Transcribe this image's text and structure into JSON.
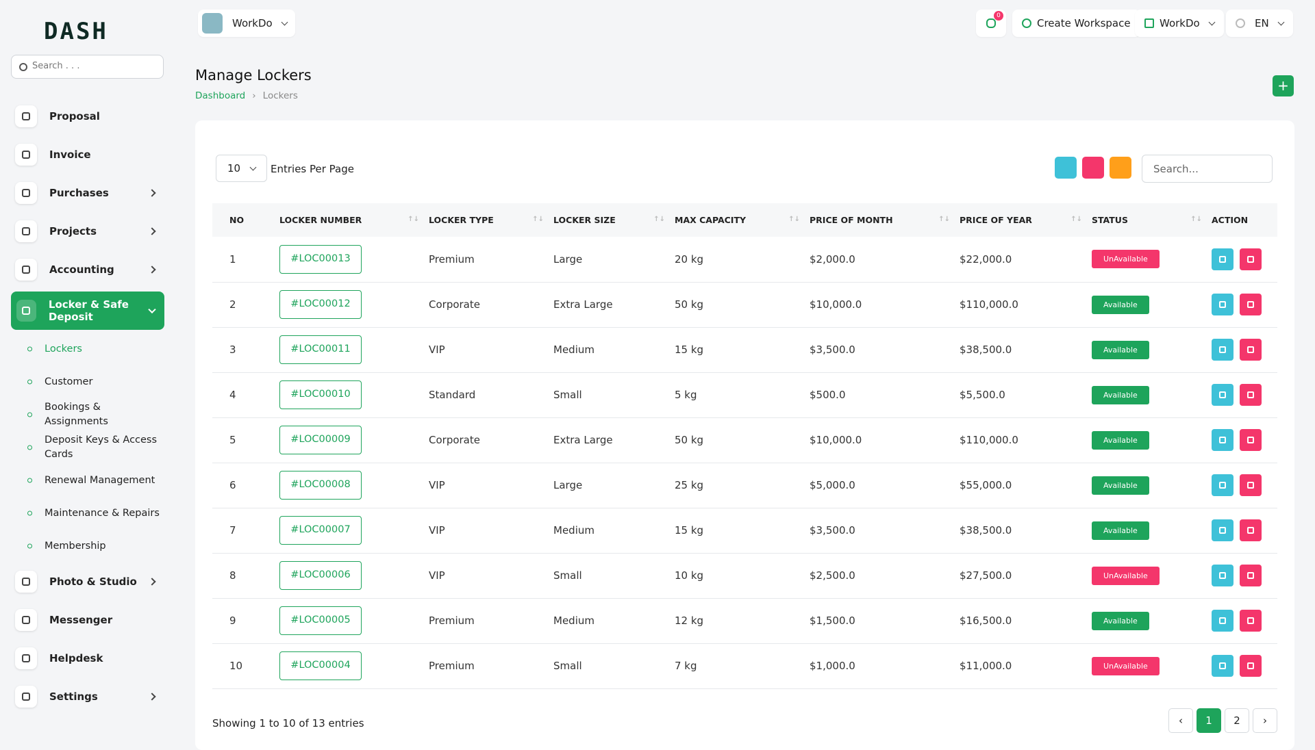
{
  "logo": "DASH",
  "sidebar": {
    "search": "Search . . .",
    "items": [
      {
        "label": "Proposal"
      },
      {
        "label": "Invoice"
      },
      {
        "label": "Purchases",
        "arrow": true
      },
      {
        "label": "Projects",
        "arrow": true
      },
      {
        "label": "Accounting",
        "arrow": true
      },
      {
        "label": "Locker & Safe Deposit",
        "active": true,
        "children": [
          {
            "label": "Lockers",
            "active": true
          },
          {
            "label": "Customer"
          },
          {
            "label": "Bookings & Assignments"
          },
          {
            "label": "Deposit Keys & Access Cards"
          },
          {
            "label": "Renewal Management"
          },
          {
            "label": "Maintenance & Repairs"
          },
          {
            "label": "Membership"
          }
        ]
      },
      {
        "label": "Photo & Studio",
        "arrow": true
      },
      {
        "label": "Messenger"
      },
      {
        "label": "Helpdesk"
      },
      {
        "label": "Settings",
        "arrow": true
      }
    ]
  },
  "header": {
    "workspace": "WorkDo",
    "notifications": 0,
    "create": "Create Workspace",
    "account": "WorkDo",
    "language": "EN"
  },
  "page": {
    "title": "Manage Lockers",
    "breadcrumb": [
      "Dashboard",
      "Lockers"
    ]
  },
  "table": {
    "per_page": "10",
    "per_page_label": "Entries Per Page",
    "search": "Search...",
    "columns": [
      "NO",
      "LOCKER NUMBER",
      "LOCKER TYPE",
      "LOCKER SIZE",
      "MAX CAPACITY",
      "PRICE OF MONTH",
      "PRICE OF YEAR",
      "STATUS",
      "ACTION"
    ],
    "rows": [
      [
        "1",
        "#LOC00013",
        "Premium",
        "Large",
        "20 kg",
        "$2,000.0",
        "$22,000.0",
        "UnAvailable"
      ],
      [
        "2",
        "#LOC00012",
        "Corporate",
        "Extra Large",
        "50 kg",
        "$10,000.0",
        "$110,000.0",
        "Available"
      ],
      [
        "3",
        "#LOC00011",
        "VIP",
        "Medium",
        "15 kg",
        "$3,500.0",
        "$38,500.0",
        "Available"
      ],
      [
        "4",
        "#LOC00010",
        "Standard",
        "Small",
        "5 kg",
        "$500.0",
        "$5,500.0",
        "Available"
      ],
      [
        "5",
        "#LOC00009",
        "Corporate",
        "Extra Large",
        "50 kg",
        "$10,000.0",
        "$110,000.0",
        "Available"
      ],
      [
        "6",
        "#LOC00008",
        "VIP",
        "Large",
        "25 kg",
        "$5,000.0",
        "$55,000.0",
        "Available"
      ],
      [
        "7",
        "#LOC00007",
        "VIP",
        "Medium",
        "15 kg",
        "$3,500.0",
        "$38,500.0",
        "Available"
      ],
      [
        "8",
        "#LOC00006",
        "VIP",
        "Small",
        "10 kg",
        "$2,500.0",
        "$27,500.0",
        "UnAvailable"
      ],
      [
        "9",
        "#LOC00005",
        "Premium",
        "Medium",
        "12 kg",
        "$1,500.0",
        "$16,500.0",
        "Available"
      ],
      [
        "10",
        "#LOC00004",
        "Premium",
        "Small",
        "7 kg",
        "$1,000.0",
        "$11,000.0",
        "UnAvailable"
      ]
    ],
    "summary": "Showing 1 to 10 of 13 entries",
    "pages": [
      "1",
      "2"
    ]
  }
}
